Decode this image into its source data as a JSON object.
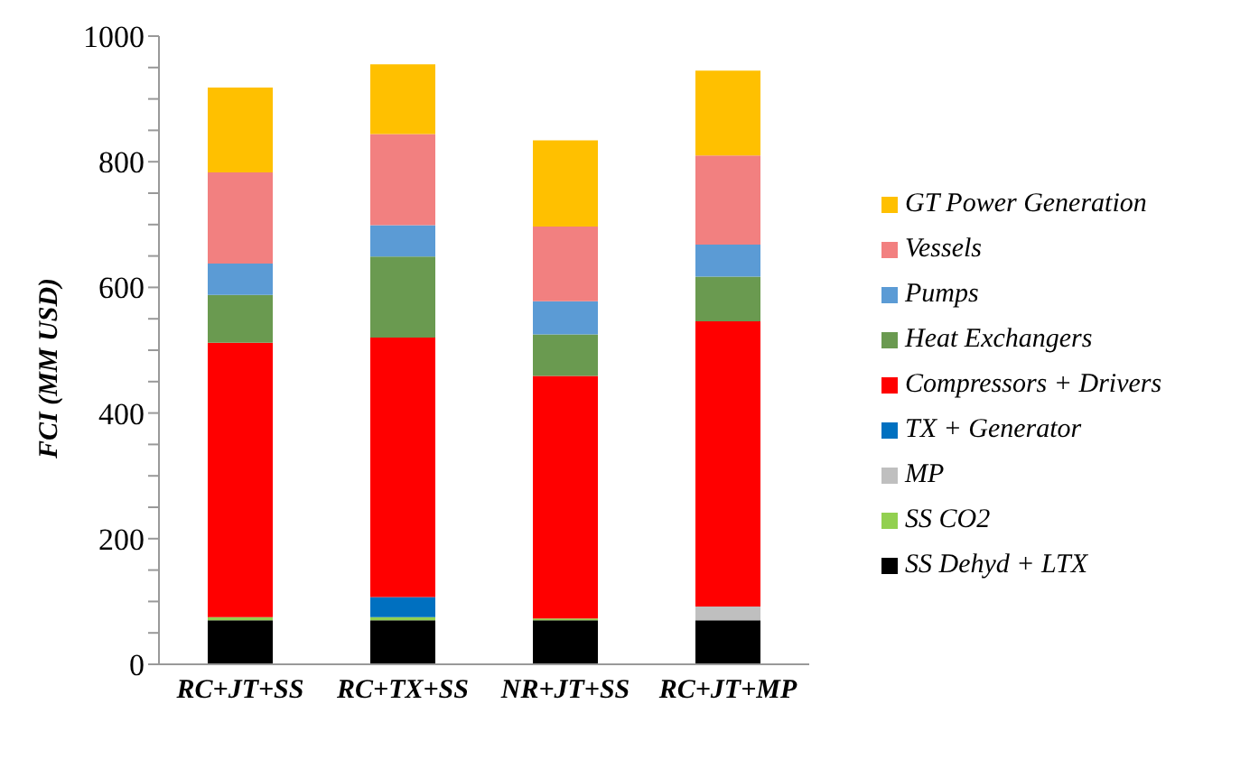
{
  "chart_data": {
    "type": "bar",
    "stacked": true,
    "ylabel": "FCI (MM USD)",
    "categories": [
      "RC+JT+SS",
      "RC+TX+SS",
      "NR+JT+SS",
      "RC+JT+MP"
    ],
    "series": [
      {
        "name": "SS Dehyd + LTX",
        "color": "#000000",
        "values": [
          70,
          70,
          70,
          70
        ]
      },
      {
        "name": "SS CO2",
        "color": "#92d050",
        "values": [
          5,
          5,
          3,
          0
        ]
      },
      {
        "name": "MP",
        "color": "#bfbfbf",
        "values": [
          0,
          0,
          0,
          22
        ]
      },
      {
        "name": "TX + Generator",
        "color": "#0070c0",
        "values": [
          0,
          32,
          0,
          0
        ]
      },
      {
        "name": "Compressors + Drivers",
        "color": "#ff0000",
        "values": [
          437,
          413,
          386,
          454
        ]
      },
      {
        "name": "Heat Exchangers",
        "color": "#6a9a50",
        "values": [
          76,
          129,
          66,
          71
        ]
      },
      {
        "name": "Pumps",
        "color": "#5b9bd5",
        "values": [
          50,
          50,
          53,
          51
        ]
      },
      {
        "name": "Vessels",
        "color": "#f28080",
        "values": [
          145,
          145,
          119,
          142
        ]
      },
      {
        "name": "GT Power Generation",
        "color": "#ffc000",
        "values": [
          135,
          111,
          137,
          135
        ]
      }
    ],
    "ylim": [
      0,
      1000
    ],
    "yticks": [
      0,
      {
        "value": 50,
        "label": null
      },
      200,
      {
        "value": 100,
        "label": null
      },
      {
        "value": 150,
        "label": null
      },
      {
        "value": 250,
        "label": null
      },
      {
        "value": 300,
        "label": null
      },
      {
        "value": 350,
        "label": null
      },
      400,
      {
        "value": 450,
        "label": null
      },
      {
        "value": 500,
        "label": null
      },
      {
        "value": 550,
        "label": null
      },
      600,
      {
        "value": 650,
        "label": null
      },
      {
        "value": 700,
        "label": null
      },
      {
        "value": 750,
        "label": null
      },
      800,
      {
        "value": 850,
        "label": null
      },
      {
        "value": 900,
        "label": null
      },
      {
        "value": 950,
        "label": null
      },
      1000
    ],
    "grid": false,
    "legend": "right"
  }
}
